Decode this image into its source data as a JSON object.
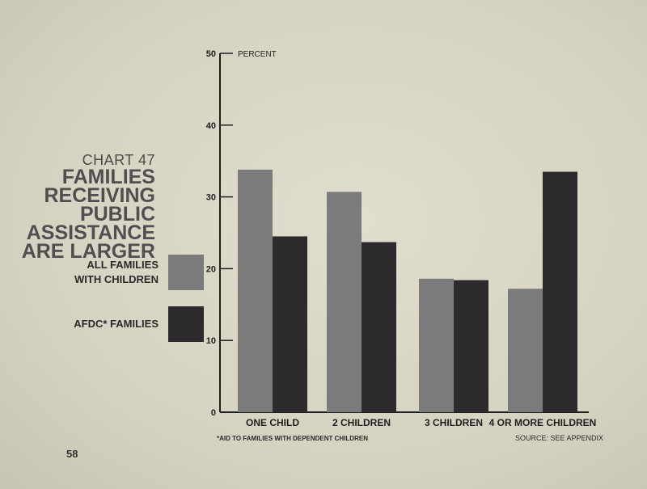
{
  "page": {
    "number": "58"
  },
  "title": {
    "chart_number": "CHART 47",
    "lines": [
      "FAMILIES",
      "RECEIVING",
      "PUBLIC ASSISTANCE",
      "ARE LARGER"
    ]
  },
  "legend": [
    {
      "label_lines": [
        "ALL FAMILIES",
        "WITH CHILDREN"
      ],
      "color": "#7b7b7b"
    },
    {
      "label_lines": [
        "AFDC* FAMILIES"
      ],
      "color": "#2c2a2c"
    }
  ],
  "footnote": "*AID TO FAMILIES WITH DEPENDENT CHILDREN",
  "source": "SOURCE: SEE APPENDIX",
  "colors": {
    "all_families": "#7b7b7b",
    "afdc": "#2c2a2c",
    "axis": "#1e1e1e",
    "background": "#dad6c6"
  },
  "chart_data": {
    "type": "bar",
    "categories": [
      "ONE CHILD",
      "2 CHILDREN",
      "3 CHILDREN",
      "4 OR MORE CHILDREN"
    ],
    "series": [
      {
        "name": "ALL FAMILIES WITH CHILDREN",
        "values": [
          33.8,
          30.7,
          18.6,
          17.2
        ]
      },
      {
        "name": "AFDC* FAMILIES",
        "values": [
          24.5,
          23.7,
          18.4,
          33.5
        ]
      }
    ],
    "ylabel": "PERCENT",
    "ylim": [
      0,
      50
    ],
    "yticks": [
      "0",
      "10",
      "20",
      "30",
      "40",
      "50"
    ],
    "grid": false,
    "legend_position": "left"
  }
}
